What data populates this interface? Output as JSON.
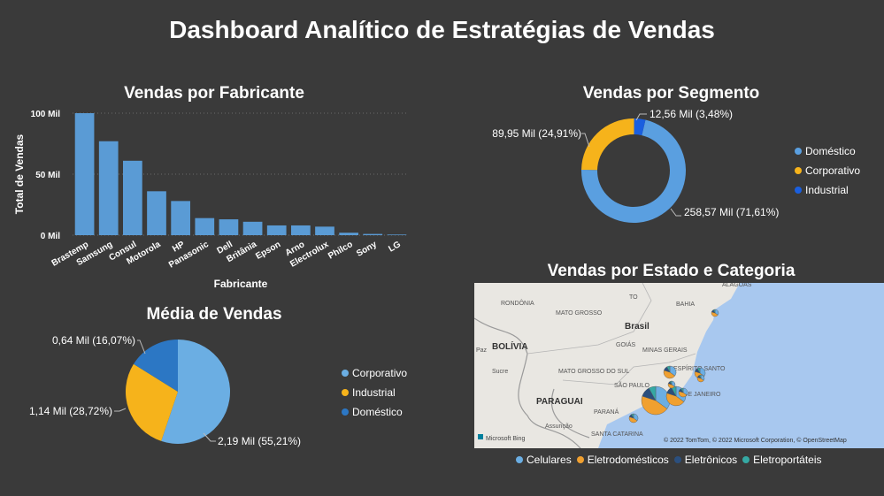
{
  "title": "Dashboard Analítico de Estratégias de Vendas",
  "bar_chart": {
    "title": "Vendas por Fabricante",
    "chart_data": {
      "type": "bar",
      "categories": [
        "Brastemp",
        "Samsung",
        "Consul",
        "Motorola",
        "HP",
        "Panasonic",
        "Dell",
        "Britânia",
        "Epson",
        "Arno",
        "Electrolux",
        "Philco",
        "Sony",
        "LG"
      ],
      "values": [
        100,
        77,
        61,
        36,
        28,
        14,
        13,
        11,
        8,
        8,
        7,
        2,
        1,
        0.5
      ],
      "xlabel": "Fabricante",
      "ylabel": "Total de Vendas",
      "ylim": [
        0,
        100
      ],
      "yticks": [
        {
          "v": 0,
          "label": "0 Mil"
        },
        {
          "v": 50,
          "label": "50 Mil"
        },
        {
          "v": 100,
          "label": "100 Mil"
        }
      ],
      "color": "#5a9bd5",
      "grid": "dotted"
    }
  },
  "donut_chart": {
    "title": "Vendas por Segmento",
    "chart_data": {
      "type": "pie",
      "hole": true,
      "slices": [
        {
          "name": "Doméstico",
          "value": 258.57,
          "pct": 71.61,
          "label": "258,57 Mil (71,61%)",
          "color": "#5a9fe0"
        },
        {
          "name": "Corporativo",
          "value": 89.95,
          "pct": 24.91,
          "label": "89,95 Mil (24,91%)",
          "color": "#f6b31b"
        },
        {
          "name": "Industrial",
          "value": 12.56,
          "pct": 3.48,
          "label": "12,56 Mil (3,48%)",
          "color": "#1a5fdf"
        }
      ]
    }
  },
  "pie_chart": {
    "title": "Média de Vendas",
    "chart_data": {
      "type": "pie",
      "hole": false,
      "slices": [
        {
          "name": "Corporativo",
          "value": 2.19,
          "pct": 55.21,
          "label": "2,19 Mil (55,21%)",
          "color": "#6baee3"
        },
        {
          "name": "Industrial",
          "value": 1.14,
          "pct": 28.72,
          "label": "1,14 Mil (28,72%)",
          "color": "#f6b31b"
        },
        {
          "name": "Doméstico",
          "value": 0.64,
          "pct": 16.07,
          "label": "0,64 Mil (16,07%)",
          "color": "#2c77c4"
        }
      ]
    }
  },
  "map": {
    "title": "Vendas por Estado e Categoria",
    "place_labels": [
      "RONDÔNIA",
      "MATO GROSSO",
      "TO",
      "BAHIA",
      "ALAGOAS",
      "Brasil",
      "GOIÁS",
      "BOLÍVIA",
      "Paz",
      "Sucre",
      "MATO GROSSO DO SUL",
      "MINAS GERAIS",
      "ESPÍRITO SANTO",
      "SÃO PAULO",
      "RIO DE JANEIRO",
      "PARAGUAI",
      "PARANÁ",
      "Assunção",
      "SANTA CATARINA"
    ],
    "attribution": "© 2022 TomTom, © 2022 Microsoft Corporation, © OpenStreetMap",
    "logo": "Microsoft Bing",
    "legend": [
      {
        "name": "Celulares",
        "color": "#6baee3"
      },
      {
        "name": "Eletrodomésticos",
        "color": "#f0a030"
      },
      {
        "name": "Eletrônicos",
        "color": "#2b4f7e"
      },
      {
        "name": "Eletroportáteis",
        "color": "#35a9a4"
      }
    ]
  }
}
